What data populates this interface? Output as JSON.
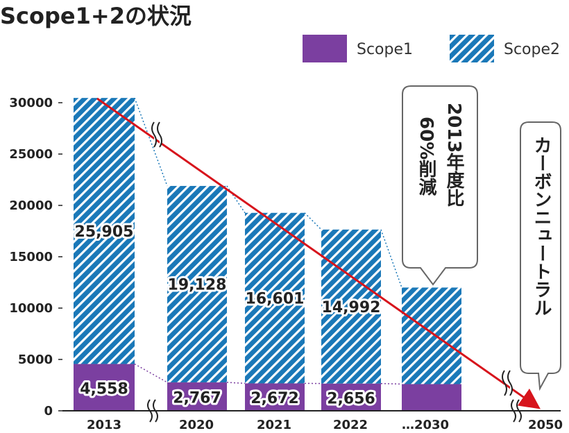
{
  "chart_data": {
    "type": "bar",
    "title": "Scope1+2の状況",
    "categories": [
      "2013",
      "2020",
      "2021",
      "2022",
      "…2030",
      "2050"
    ],
    "series": [
      {
        "name": "Scope1",
        "color": "#7b3fa0",
        "values": [
          4558,
          2767,
          2672,
          2656,
          2600,
          0
        ]
      },
      {
        "name": "Scope2",
        "color": "#1a78b8",
        "pattern": "diagonal-hatch",
        "values": [
          25905,
          19128,
          16601,
          14992,
          9400,
          0
        ]
      }
    ],
    "data_labels": {
      "Scope1": [
        "4,558",
        "2,767",
        "2,672",
        "2,656"
      ],
      "Scope2": [
        "25,905",
        "19,128",
        "16,601",
        "14,992"
      ]
    },
    "y_ticks": [
      "0",
      "5000",
      "10000",
      "15000",
      "20000",
      "25000",
      "30000"
    ],
    "ylim": [
      0,
      30000
    ],
    "legend_position": "top-right",
    "grid": false,
    "axis_break": true,
    "annotations": [
      {
        "text_col1": "60%削減",
        "text_col2": "2013年度比"
      },
      {
        "text": "カーボンニュートラル"
      }
    ]
  }
}
